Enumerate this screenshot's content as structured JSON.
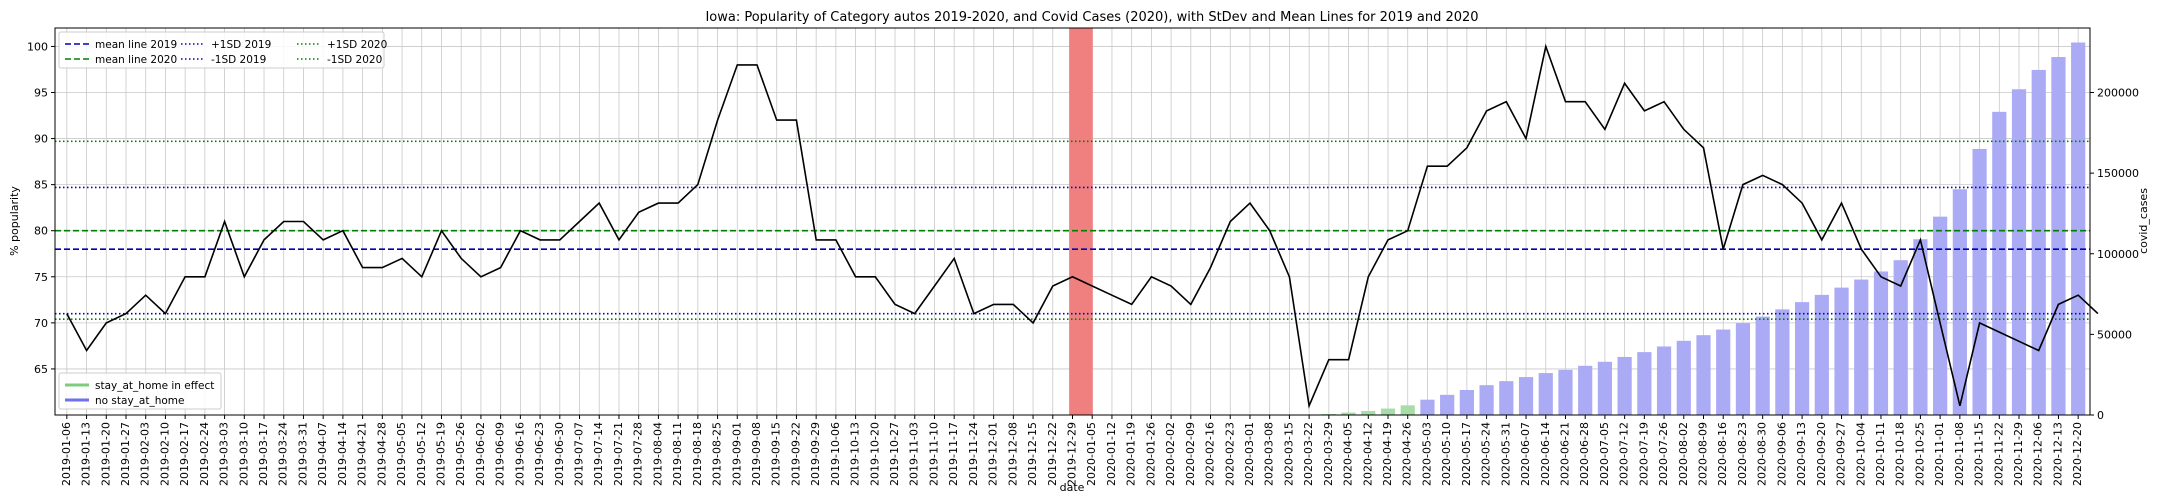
{
  "chart_data": {
    "type": "line",
    "title": "Iowa: Popularity of Category autos 2019-2020, and Covid Cases (2020), with StDev and Mean Lines for 2019 and 2020",
    "xlabel": "date",
    "ylabel": "% popularity",
    "y2label": "covid_cases",
    "ylim": [
      60,
      102
    ],
    "y2lim": [
      0,
      240000
    ],
    "yticks": [
      65,
      70,
      75,
      80,
      85,
      90,
      95,
      100
    ],
    "y2ticks": [
      0,
      50000,
      100000,
      150000,
      200000
    ],
    "grid": true,
    "dates": [
      "2019-01-06",
      "2019-01-13",
      "2019-01-20",
      "2019-01-27",
      "2019-02-03",
      "2019-02-10",
      "2019-02-17",
      "2019-02-24",
      "2019-03-03",
      "2019-03-10",
      "2019-03-17",
      "2019-03-24",
      "2019-03-31",
      "2019-04-07",
      "2019-04-14",
      "2019-04-21",
      "2019-04-28",
      "2019-05-05",
      "2019-05-12",
      "2019-05-19",
      "2019-05-26",
      "2019-06-02",
      "2019-06-09",
      "2019-06-16",
      "2019-06-23",
      "2019-06-30",
      "2019-07-07",
      "2019-07-14",
      "2019-07-21",
      "2019-07-28",
      "2019-08-04",
      "2019-08-11",
      "2019-08-18",
      "2019-08-25",
      "2019-09-01",
      "2019-09-08",
      "2019-09-15",
      "2019-09-22",
      "2019-09-29",
      "2019-10-06",
      "2019-10-13",
      "2019-10-20",
      "2019-10-27",
      "2019-11-03",
      "2019-11-10",
      "2019-11-17",
      "2019-11-24",
      "2019-12-01",
      "2019-12-08",
      "2019-12-15",
      "2019-12-22",
      "2019-12-29",
      "2020-01-05",
      "2020-01-12",
      "2020-01-19",
      "2020-01-26",
      "2020-02-02",
      "2020-02-09",
      "2020-02-16",
      "2020-02-23",
      "2020-03-01",
      "2020-03-08",
      "2020-03-15",
      "2020-03-22",
      "2020-03-29",
      "2020-04-05",
      "2020-04-12",
      "2020-04-19",
      "2020-04-26",
      "2020-05-03",
      "2020-05-10",
      "2020-05-17",
      "2020-05-24",
      "2020-05-31",
      "2020-06-07",
      "2020-06-14",
      "2020-06-21",
      "2020-06-28",
      "2020-07-05",
      "2020-07-12",
      "2020-07-19",
      "2020-07-26",
      "2020-08-02",
      "2020-08-09",
      "2020-08-16",
      "2020-08-23",
      "2020-08-30",
      "2020-09-06",
      "2020-09-13",
      "2020-09-20",
      "2020-09-27",
      "2020-10-04",
      "2020-10-11",
      "2020-10-18",
      "2020-10-25",
      "2020-11-01",
      "2020-11-08",
      "2020-11-15",
      "2020-11-22",
      "2020-11-29",
      "2020-12-06",
      "2020-12-13",
      "2020-12-20"
    ],
    "popularity": [
      71,
      67,
      70,
      71,
      73,
      71,
      75,
      75,
      81,
      75,
      79,
      81,
      81,
      79,
      80,
      76,
      76,
      77,
      75,
      80,
      77,
      75,
      76,
      80,
      79,
      79,
      81,
      83,
      79,
      82,
      83,
      83,
      85,
      92,
      98,
      98,
      92,
      92,
      79,
      79,
      75,
      75,
      72,
      71,
      74,
      77,
      71,
      72,
      72,
      70,
      74,
      75,
      74,
      73,
      72,
      75,
      74,
      72,
      76,
      81,
      83,
      80,
      75,
      61,
      66,
      66,
      75,
      79,
      80,
      87,
      87,
      89,
      93,
      94,
      90,
      100,
      94,
      94,
      91,
      96,
      93,
      94,
      91,
      89,
      78,
      85,
      86,
      85,
      83,
      79,
      83,
      78,
      75,
      74,
      79,
      70,
      61,
      70,
      69,
      68,
      67,
      72,
      73,
      71
    ],
    "covid_cases": [
      0,
      0,
      0,
      0,
      0,
      0,
      0,
      0,
      0,
      0,
      0,
      0,
      0,
      0,
      0,
      0,
      0,
      0,
      0,
      0,
      0,
      0,
      0,
      0,
      0,
      0,
      0,
      0,
      0,
      0,
      0,
      0,
      0,
      0,
      0,
      0,
      0,
      0,
      0,
      0,
      0,
      0,
      0,
      0,
      0,
      0,
      0,
      0,
      0,
      0,
      0,
      0,
      0,
      0,
      0,
      0,
      0,
      0,
      0,
      0,
      0,
      0,
      18,
      100,
      600,
      1500,
      2500,
      4000,
      6000,
      9500,
      12500,
      15500,
      18500,
      21000,
      23500,
      26000,
      28000,
      30500,
      33000,
      36000,
      39000,
      42500,
      46000,
      49500,
      53000,
      57000,
      61000,
      65500,
      70000,
      74500,
      79000,
      84000,
      89000,
      96000,
      109000,
      123000,
      140000,
      165000,
      188000,
      202000,
      214000,
      222000,
      231000
    ],
    "stay_at_home": [
      false,
      false,
      false,
      false,
      false,
      false,
      false,
      false,
      false,
      false,
      false,
      false,
      false,
      false,
      false,
      false,
      false,
      false,
      false,
      false,
      false,
      false,
      false,
      false,
      false,
      false,
      false,
      false,
      false,
      false,
      false,
      false,
      false,
      false,
      false,
      false,
      false,
      false,
      false,
      false,
      false,
      false,
      false,
      false,
      false,
      false,
      false,
      false,
      false,
      false,
      false,
      false,
      false,
      false,
      false,
      false,
      false,
      false,
      false,
      false,
      false,
      false,
      true,
      true,
      true,
      true,
      true,
      true,
      true,
      false,
      false,
      false,
      false,
      false,
      false,
      false,
      false,
      false,
      false,
      false,
      false,
      false,
      false,
      false,
      false,
      false,
      false,
      false,
      false,
      false,
      false,
      false,
      false,
      false,
      false,
      false,
      false,
      false,
      false,
      false,
      false,
      false,
      false
    ],
    "highlight_date": "2020-01-01",
    "reference_lines": [
      {
        "label": "mean line 2019",
        "value": 78,
        "color": "#0000bb",
        "style": "dashed"
      },
      {
        "label": "mean line 2020",
        "value": 80,
        "color": "#008000",
        "style": "dashed"
      },
      {
        "label": "+1SD 2019",
        "value": 84.7,
        "color": "#0000bb",
        "style": "dotted"
      },
      {
        "label": "-1SD 2019",
        "value": 71.0,
        "color": "#0000bb",
        "style": "dotted"
      },
      {
        "label": "+1SD 2020",
        "value": 89.7,
        "color": "#008000",
        "style": "dotted"
      },
      {
        "label": "-1SD 2020",
        "value": 70.4,
        "color": "#008000",
        "style": "dotted"
      }
    ],
    "bar_legend": [
      {
        "label": "stay_at_home in effect",
        "color": "#7fcc7f"
      },
      {
        "label": "no stay_at_home",
        "color": "#7070ee"
      }
    ],
    "colors": {
      "line": "#000000",
      "bar_default": "#aaaaf5",
      "bar_stay": "#a8dca8",
      "highlight": "#f08080",
      "grid": "#c8c8c8"
    }
  }
}
